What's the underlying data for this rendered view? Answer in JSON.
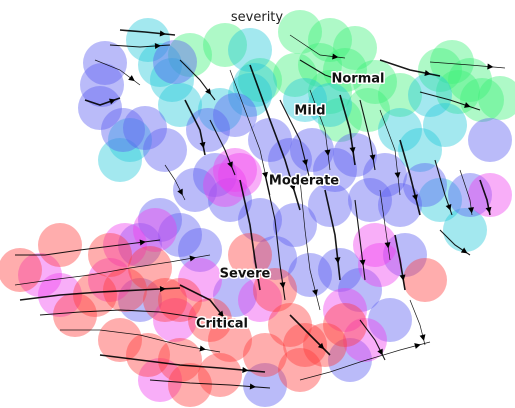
{
  "chart_data": {
    "type": "scatter",
    "title": "severity",
    "xlabel": "",
    "ylabel": "",
    "grid": false,
    "axes_visible": false,
    "overlay": "velocity streamlines (black arrows)",
    "colors": {
      "Normal": "#3df07a",
      "Mild": "#23c7d8",
      "Moderate": "#5b5cf0",
      "Severe": "#ef3eef",
      "Critical": "#ff3b3b"
    },
    "clusters": [
      {
        "name": "Normal",
        "label_pos": [
          358,
          79
        ],
        "points": [
          [
            300,
            32,
            "Normal"
          ],
          [
            330,
            40,
            "Normal"
          ],
          [
            355,
            48,
            "Normal"
          ],
          [
            320,
            65,
            "Normal"
          ],
          [
            345,
            70,
            "Normal"
          ],
          [
            375,
            82,
            "Normal"
          ],
          [
            295,
            75,
            "Normal"
          ],
          [
            330,
            92,
            "Normal"
          ],
          [
            368,
            110,
            "Normal"
          ],
          [
            400,
            95,
            "Normal"
          ],
          [
            440,
            70,
            "Normal"
          ],
          [
            458,
            92,
            "Normal"
          ],
          [
            482,
            100,
            "Normal"
          ],
          [
            500,
            98,
            "Normal"
          ],
          [
            225,
            45,
            "Normal"
          ],
          [
            190,
            55,
            "Normal"
          ],
          [
            260,
            80,
            "Normal"
          ],
          [
            340,
            120,
            "Normal"
          ],
          [
            470,
            80,
            "Normal"
          ],
          [
            452,
            62,
            "Normal"
          ]
        ]
      },
      {
        "name": "Mild",
        "label_pos": [
          310,
          111
        ],
        "points": [
          [
            148,
            40,
            "Mild"
          ],
          [
            160,
            65,
            "Mild"
          ],
          [
            250,
            50,
            "Mild"
          ],
          [
            172,
            80,
            "Mild"
          ],
          [
            250,
            95,
            "Mild"
          ],
          [
            305,
            100,
            "Mild"
          ],
          [
            330,
            105,
            "Mild"
          ],
          [
            220,
            110,
            "Mild"
          ],
          [
            180,
            105,
            "Mild"
          ],
          [
            120,
            160,
            "Mild"
          ],
          [
            400,
            130,
            "Mild"
          ],
          [
            420,
            150,
            "Mild"
          ],
          [
            445,
            125,
            "Mild"
          ],
          [
            440,
            200,
            "Mild"
          ],
          [
            465,
            230,
            "Mild"
          ],
          [
            430,
            95,
            "Mild"
          ],
          [
            130,
            140,
            "Mild"
          ],
          [
            255,
            85,
            "Mild"
          ]
        ]
      },
      {
        "name": "Moderate",
        "label_pos": [
          304,
          181
        ],
        "points": [
          [
            105,
            63,
            "Moderate"
          ],
          [
            102,
            85,
            "Moderate"
          ],
          [
            100,
            108,
            "Moderate"
          ],
          [
            175,
            62,
            "Moderate"
          ],
          [
            123,
            130,
            "Moderate"
          ],
          [
            145,
            128,
            "Moderate"
          ],
          [
            165,
            150,
            "Moderate"
          ],
          [
            208,
            130,
            "Moderate"
          ],
          [
            235,
            115,
            "Moderate"
          ],
          [
            270,
            140,
            "Moderate"
          ],
          [
            290,
            160,
            "Moderate"
          ],
          [
            312,
            150,
            "Moderate"
          ],
          [
            335,
            170,
            "Moderate"
          ],
          [
            355,
            155,
            "Moderate"
          ],
          [
            385,
            175,
            "Moderate"
          ],
          [
            370,
            200,
            "Moderate"
          ],
          [
            195,
            190,
            "Moderate"
          ],
          [
            230,
            200,
            "Moderate"
          ],
          [
            260,
            220,
            "Moderate"
          ],
          [
            295,
            225,
            "Moderate"
          ],
          [
            330,
            205,
            "Moderate"
          ],
          [
            400,
            205,
            "Moderate"
          ],
          [
            425,
            185,
            "Moderate"
          ],
          [
            470,
            195,
            "Moderate"
          ],
          [
            490,
            140,
            "Moderate"
          ],
          [
            200,
            250,
            "Moderate"
          ],
          [
            180,
            235,
            "Moderate"
          ],
          [
            140,
            245,
            "Moderate"
          ],
          [
            160,
            220,
            "Moderate"
          ],
          [
            340,
            270,
            "Moderate"
          ],
          [
            310,
            275,
            "Moderate"
          ],
          [
            360,
            290,
            "Moderate"
          ],
          [
            405,
            255,
            "Moderate"
          ],
          [
            390,
            320,
            "Moderate"
          ],
          [
            350,
            360,
            "Moderate"
          ],
          [
            235,
            295,
            "Moderate"
          ],
          [
            140,
            300,
            "Moderate"
          ],
          [
            265,
            385,
            "Moderate"
          ],
          [
            275,
            258,
            "Moderate"
          ],
          [
            215,
            175,
            "Moderate"
          ]
        ]
      },
      {
        "name": "Severe",
        "label_pos": [
          245,
          274
        ],
        "points": [
          [
            235,
            170,
            "Severe"
          ],
          [
            225,
            185,
            "Severe"
          ],
          [
            155,
            230,
            "Severe"
          ],
          [
            125,
            245,
            "Severe"
          ],
          [
            110,
            280,
            "Severe"
          ],
          [
            40,
            275,
            "Severe"
          ],
          [
            60,
            295,
            "Severe"
          ],
          [
            375,
            245,
            "Severe"
          ],
          [
            380,
            265,
            "Severe"
          ],
          [
            200,
            280,
            "Severe"
          ],
          [
            160,
            380,
            "Severe"
          ],
          [
            175,
            320,
            "Severe"
          ],
          [
            345,
            310,
            "Severe"
          ],
          [
            260,
            300,
            "Severe"
          ],
          [
            490,
            195,
            "Severe"
          ],
          [
            240,
            175,
            "Severe"
          ],
          [
            365,
            340,
            "Severe"
          ]
        ]
      },
      {
        "name": "Critical",
        "label_pos": [
          222,
          324
        ],
        "points": [
          [
            60,
            245,
            "Critical"
          ],
          [
            20,
            270,
            "Critical"
          ],
          [
            75,
            315,
            "Critical"
          ],
          [
            95,
            295,
            "Critical"
          ],
          [
            125,
            290,
            "Critical"
          ],
          [
            150,
            268,
            "Critical"
          ],
          [
            165,
            300,
            "Critical"
          ],
          [
            120,
            340,
            "Critical"
          ],
          [
            148,
            355,
            "Critical"
          ],
          [
            180,
            360,
            "Critical"
          ],
          [
            210,
            320,
            "Critical"
          ],
          [
            230,
            340,
            "Critical"
          ],
          [
            250,
            255,
            "Critical"
          ],
          [
            275,
            290,
            "Critical"
          ],
          [
            290,
            325,
            "Critical"
          ],
          [
            305,
            345,
            "Critical"
          ],
          [
            265,
            355,
            "Critical"
          ],
          [
            300,
            370,
            "Critical"
          ],
          [
            325,
            345,
            "Critical"
          ],
          [
            345,
            325,
            "Critical"
          ],
          [
            425,
            280,
            "Critical"
          ],
          [
            190,
            385,
            "Critical"
          ],
          [
            220,
            375,
            "Critical"
          ],
          [
            180,
            300,
            "Critical"
          ],
          [
            110,
            255,
            "Critical"
          ]
        ]
      }
    ]
  }
}
